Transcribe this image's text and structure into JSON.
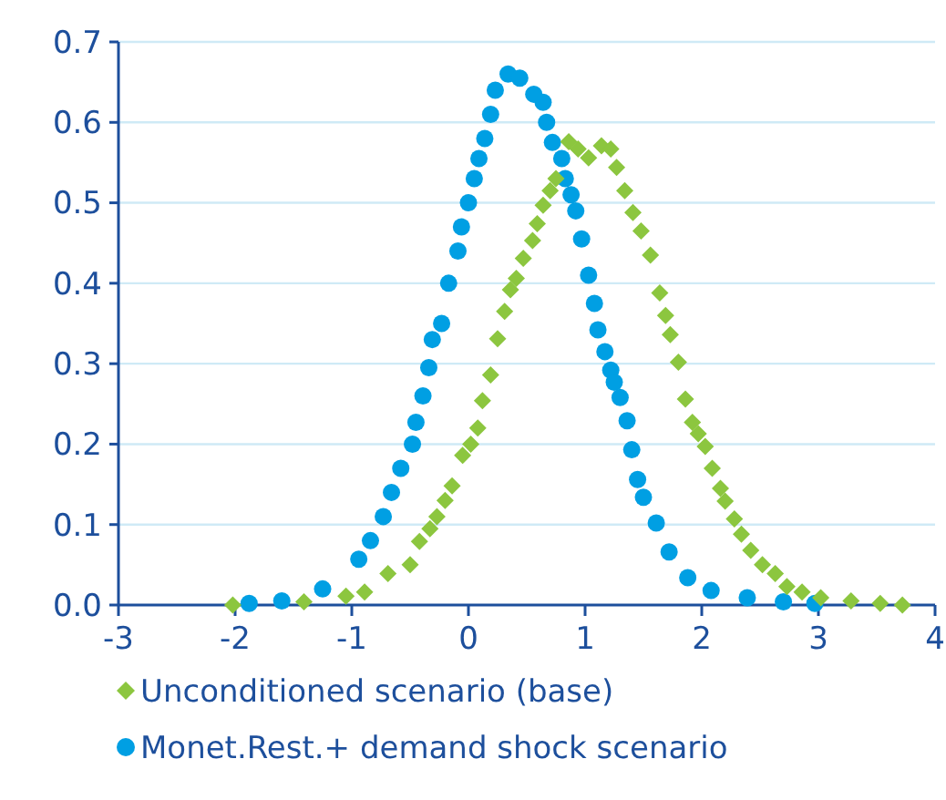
{
  "chart_data": {
    "type": "scatter",
    "xlim": [
      -3,
      4
    ],
    "xticks": [
      -3,
      -2,
      -1,
      0,
      1,
      2,
      3,
      4
    ],
    "ylim": [
      0,
      0.7
    ],
    "yticks": [
      {
        "value": 0,
        "label": "0.0"
      },
      0.1,
      0.2,
      0.3,
      0.4,
      0.5,
      0.6,
      0.7
    ],
    "grid": "y",
    "legend": "bottom",
    "series": [
      {
        "name": "Unconditioned scenario (base)",
        "color": "#8cc63f",
        "marker": "diamond",
        "x": [
          -2.02,
          -1.41,
          -1.05,
          -0.89,
          -0.69,
          -0.5,
          -0.42,
          -0.33,
          -0.27,
          -0.2,
          -0.14,
          -0.05,
          0.02,
          0.08,
          0.12,
          0.19,
          0.25,
          0.31,
          0.36,
          0.41,
          0.47,
          0.55,
          0.59,
          0.64,
          0.7,
          0.75,
          0.86,
          0.94,
          1.03,
          1.14,
          1.22,
          1.27,
          1.34,
          1.41,
          1.48,
          1.56,
          1.64,
          1.69,
          1.73,
          1.8,
          1.86,
          1.92,
          1.97,
          2.03,
          2.09,
          2.16,
          2.2,
          2.28,
          2.34,
          2.42,
          2.52,
          2.63,
          2.73,
          2.86,
          3.02,
          3.28,
          3.53,
          3.72
        ],
        "values": [
          0,
          0.004,
          0.011,
          0.016,
          0.039,
          0.05,
          0.079,
          0.095,
          0.11,
          0.13,
          0.148,
          0.186,
          0.2,
          0.22,
          0.254,
          0.286,
          0.331,
          0.365,
          0.392,
          0.406,
          0.431,
          0.453,
          0.474,
          0.497,
          0.515,
          0.53,
          0.576,
          0.567,
          0.556,
          0.571,
          0.567,
          0.544,
          0.515,
          0.488,
          0.465,
          0.435,
          0.388,
          0.36,
          0.336,
          0.302,
          0.256,
          0.227,
          0.213,
          0.197,
          0.17,
          0.145,
          0.129,
          0.107,
          0.088,
          0.068,
          0.05,
          0.039,
          0.023,
          0.016,
          0.009,
          0.005,
          0.002,
          0
        ]
      },
      {
        "name": "Monet.Rest.+ demand shock scenario",
        "color": "#009fe3",
        "marker": "circle",
        "x": [
          -1.88,
          -1.6,
          -1.25,
          -0.94,
          -0.84,
          -0.73,
          -0.66,
          -0.58,
          -0.48,
          -0.45,
          -0.39,
          -0.34,
          -0.31,
          -0.23,
          -0.17,
          -0.09,
          -0.06,
          0,
          0.05,
          0.09,
          0.14,
          0.19,
          0.23,
          0.34,
          0.44,
          0.56,
          0.64,
          0.67,
          0.72,
          0.8,
          0.83,
          0.88,
          0.92,
          0.97,
          1.03,
          1.08,
          1.11,
          1.17,
          1.22,
          1.25,
          1.3,
          1.36,
          1.4,
          1.45,
          1.5,
          1.61,
          1.72,
          1.88,
          2.08,
          2.39,
          2.7,
          2.97
        ],
        "values": [
          0.002,
          0.005,
          0.02,
          0.057,
          0.08,
          0.11,
          0.14,
          0.17,
          0.2,
          0.227,
          0.26,
          0.295,
          0.33,
          0.35,
          0.4,
          0.44,
          0.47,
          0.5,
          0.53,
          0.555,
          0.58,
          0.61,
          0.64,
          0.66,
          0.655,
          0.635,
          0.625,
          0.6,
          0.575,
          0.555,
          0.53,
          0.51,
          0.49,
          0.455,
          0.41,
          0.375,
          0.342,
          0.315,
          0.292,
          0.277,
          0.258,
          0.229,
          0.193,
          0.156,
          0.134,
          0.102,
          0.066,
          0.034,
          0.018,
          0.009,
          0.004,
          0.002
        ]
      }
    ]
  }
}
